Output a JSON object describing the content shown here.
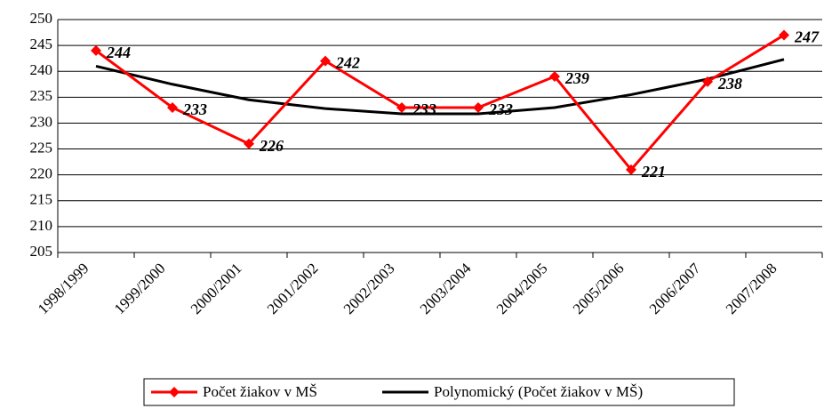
{
  "chart_data": {
    "type": "line",
    "categories": [
      "1998/1999",
      "1999/2000",
      "2000/2001",
      "2001/2002",
      "2002/2003",
      "2003/2004",
      "2004/2005",
      "2005/2006",
      "2006/2007",
      "2007/2008"
    ],
    "series": [
      {
        "name": "Počet žiakov v MŠ",
        "color": "#ff0000",
        "values": [
          244,
          233,
          226,
          242,
          233,
          233,
          239,
          221,
          238,
          247
        ]
      },
      {
        "name": "Polynomický (Počet žiakov v MŠ)",
        "color": "#000000",
        "values": [
          241,
          237.5,
          234.5,
          232.8,
          231.8,
          231.8,
          233,
          235.5,
          238.5,
          242.3
        ]
      }
    ],
    "ylim": [
      205,
      250
    ],
    "yticks": [
      205,
      210,
      215,
      220,
      225,
      230,
      235,
      240,
      245,
      250
    ],
    "grid": true,
    "legend": "bottom"
  }
}
